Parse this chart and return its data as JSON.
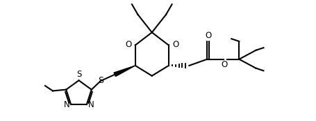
{
  "background": "#ffffff",
  "line_color": "#000000",
  "line_width": 1.5,
  "font_size": 8.5,
  "figsize": [
    4.56,
    1.75
  ],
  "dpi": 100,
  "xlim": [
    0.0,
    9.5
  ],
  "ylim": [
    0.5,
    5.2
  ]
}
